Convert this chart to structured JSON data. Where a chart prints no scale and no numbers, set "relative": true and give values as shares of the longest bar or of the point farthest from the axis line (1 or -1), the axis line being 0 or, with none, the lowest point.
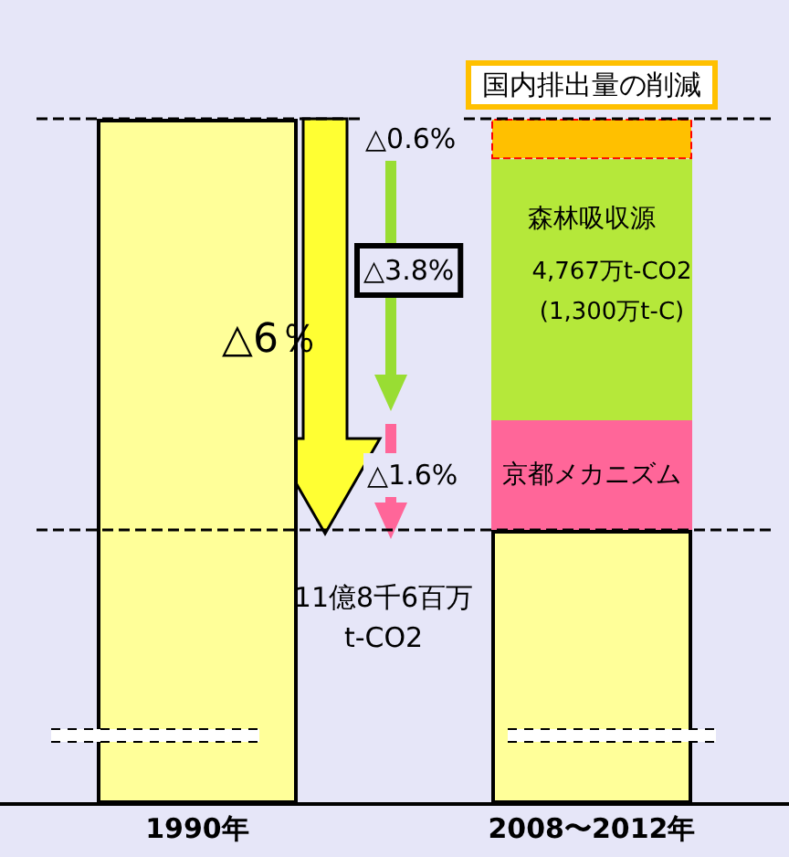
{
  "chart_data": {
    "type": "bar",
    "relative": true,
    "stacked": true,
    "categories": [
      "1990年",
      "2008〜2012年"
    ],
    "series": [
      {
        "color": "#ffff99",
        "values": [
          1,
          0.4
        ]
      },
      {
        "name": "京都メカニズム",
        "color": "#ff6699",
        "values": [
          null,
          0.16
        ]
      },
      {
        "name": "森林吸収源",
        "color": "#b5e83a",
        "values": [
          null,
          0.381
        ]
      },
      {
        "name": "国内排出量の削減",
        "color": "#ffc000",
        "values": [
          null,
          0.059
        ]
      }
    ],
    "ref_lines": [
      {
        "axis": "y",
        "value": 1
      },
      {
        "axis": "y",
        "value": 0.4
      }
    ],
    "annotations": [
      "△0.6%",
      "△3.8%",
      "△6％",
      "△1.6%",
      "11億8千6百万\nt-CO2",
      "4,767万t-CO2\n(1,300万t-C)"
    ]
  }
}
